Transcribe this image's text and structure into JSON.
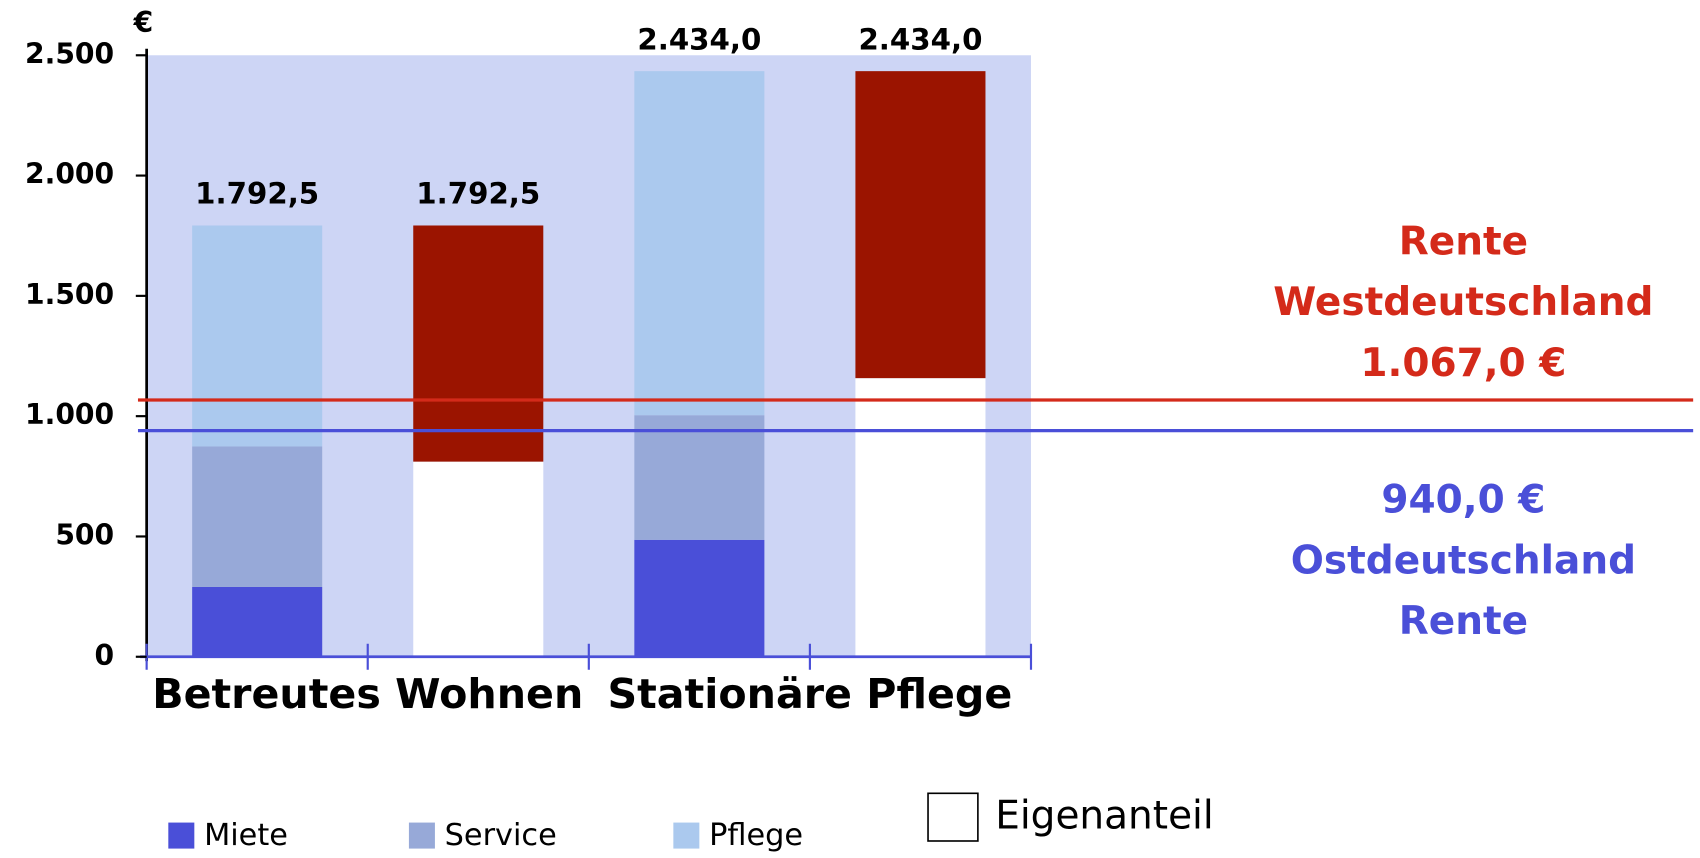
{
  "chart_data": {
    "type": "stacked_bar",
    "y_unit": "€",
    "group_labels": [
      "Betreutes Wohnen",
      "Stationäre Pflege"
    ],
    "ylim": [
      0,
      2500
    ],
    "yticks": [
      0,
      500,
      {
        "value": 1000,
        "label": "1.000"
      },
      {
        "value": 1500,
        "label": "1.500"
      },
      {
        "value": 2000,
        "label": "2.000"
      },
      {
        "value": 2500,
        "label": "2.500"
      }
    ],
    "series": [
      {
        "name": "Miete",
        "color": "#4a4fd8",
        "values": [
          290,
          null,
          486,
          null
        ]
      },
      {
        "name": "Service",
        "color": "#97a9d8",
        "values": [
          584,
          null,
          518,
          null
        ]
      },
      {
        "name": "Pflege",
        "color": "#abc9ee",
        "values": [
          918.5,
          null,
          1430,
          null
        ]
      },
      {
        "name": "Eigenanteil",
        "color": "#ffffff",
        "values": [
          null,
          811,
          null,
          1158
        ]
      },
      {
        "color": "#9b1400",
        "values": [
          null,
          981.5,
          null,
          1276
        ]
      }
    ],
    "totals": [
      1792.5,
      1792.5,
      2434,
      2434
    ],
    "total_labels": [
      "1.792,5",
      "1.792,5",
      "2.434,0",
      "2.434,0"
    ],
    "reference_lines": [
      {
        "texts": [
          "Rente",
          "Westdeutschland"
        ],
        "value": 1067,
        "value_label": "1.067,0 €",
        "color": "#d42a1a",
        "label_position": "above"
      },
      {
        "texts": [
          "Ostdeutschland",
          "Rente"
        ],
        "value": 940,
        "value_label": "940,0 €",
        "color": "#4a4fd8",
        "label_position": "below"
      }
    ],
    "plot_background": "#cdd5f5"
  }
}
